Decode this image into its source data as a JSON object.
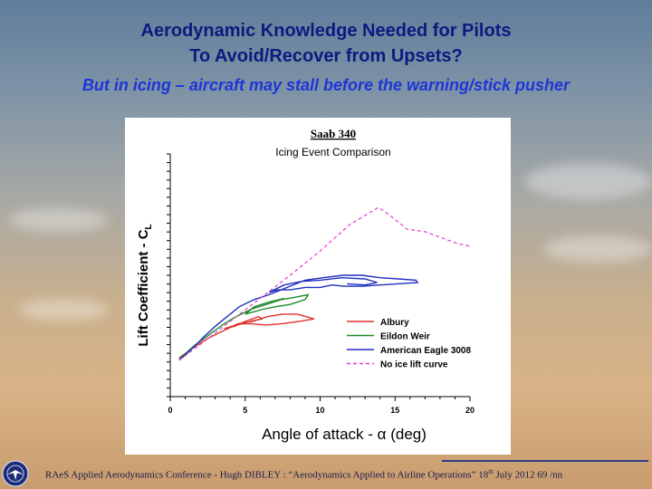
{
  "slide": {
    "title_line1": "Aerodynamic Knowledge Needed for Pilots",
    "title_line2": "To Avoid/Recover from Upsets?",
    "subtitle": "But in icing – aircraft may stall before the warning/stick pusher"
  },
  "footer": {
    "text_before": "RAeS Applied Aerodynamics Conference  -  Hugh DIBLEY :  “Aerodynamics Applied to Airline Operations”  18",
    "superscript": "th",
    "text_after": " July  2012  69 /nn",
    "logo_icon": "raes-logo-icon"
  },
  "chart_data": {
    "type": "line",
    "title": "Saab 340",
    "subtitle": "Icing Event Comparison",
    "xlabel": "Angle of attack - α (deg)",
    "ylabel": "Lift Coefficient - C",
    "ylabel_subscript": "L",
    "xlim": [
      0,
      20
    ],
    "x_ticks": [
      "0",
      "5",
      "10",
      "15",
      "20"
    ],
    "ylim": [
      0,
      1
    ],
    "legend_position": "center-right",
    "series": [
      {
        "name": "Albury",
        "color": "#e23030",
        "dash": "solid",
        "points": [
          [
            0.6,
            0.16
          ],
          [
            1.5,
            0.2
          ],
          [
            2.5,
            0.24
          ],
          [
            3.5,
            0.27
          ],
          [
            4.5,
            0.3
          ],
          [
            5.5,
            0.31
          ],
          [
            6.5,
            0.33
          ],
          [
            7.5,
            0.34
          ],
          [
            8.5,
            0.34
          ],
          [
            9.6,
            0.32
          ],
          [
            8.6,
            0.31
          ],
          [
            7.4,
            0.3
          ],
          [
            6.4,
            0.295
          ],
          [
            5.4,
            0.3
          ],
          [
            4.8,
            0.3
          ],
          [
            4.1,
            0.29
          ],
          [
            3.6,
            0.28
          ],
          [
            4.3,
            0.29
          ],
          [
            5.0,
            0.31
          ],
          [
            5.9,
            0.33
          ],
          [
            6.1,
            0.32
          ],
          [
            5.3,
            0.31
          ]
        ]
      },
      {
        "name": "Eildon Weir",
        "color": "#1f8a2a",
        "dash": "solid",
        "points": [
          [
            0.6,
            0.155
          ],
          [
            1.6,
            0.21
          ],
          [
            2.7,
            0.26
          ],
          [
            3.6,
            0.3
          ],
          [
            4.4,
            0.33
          ],
          [
            5.4,
            0.36
          ],
          [
            6.4,
            0.38
          ],
          [
            7.4,
            0.4
          ],
          [
            8.4,
            0.41
          ],
          [
            9.2,
            0.42
          ],
          [
            9.0,
            0.4
          ],
          [
            8.0,
            0.38
          ],
          [
            7.0,
            0.37
          ],
          [
            6.2,
            0.36
          ],
          [
            5.6,
            0.35
          ],
          [
            5.0,
            0.34
          ],
          [
            5.6,
            0.37
          ],
          [
            6.6,
            0.39
          ],
          [
            7.6,
            0.405
          ]
        ]
      },
      {
        "name": "American Eagle 3008",
        "color": "#1f2fc0",
        "dash": "solid",
        "points": [
          [
            0.6,
            0.15
          ],
          [
            1.5,
            0.2
          ],
          [
            2.3,
            0.25
          ],
          [
            3.0,
            0.29
          ],
          [
            3.8,
            0.33
          ],
          [
            4.6,
            0.37
          ],
          [
            5.6,
            0.4
          ],
          [
            6.6,
            0.42
          ],
          [
            7.8,
            0.45
          ],
          [
            9.0,
            0.48
          ],
          [
            10.2,
            0.49
          ],
          [
            11.5,
            0.5
          ],
          [
            12.8,
            0.5
          ],
          [
            14.0,
            0.49
          ],
          [
            15.2,
            0.485
          ],
          [
            16.4,
            0.48
          ],
          [
            16.5,
            0.47
          ],
          [
            15.2,
            0.465
          ],
          [
            14.0,
            0.46
          ],
          [
            12.8,
            0.455
          ],
          [
            11.6,
            0.455
          ],
          [
            10.8,
            0.46
          ],
          [
            10.0,
            0.45
          ],
          [
            9.0,
            0.45
          ],
          [
            8.0,
            0.44
          ],
          [
            7.2,
            0.44
          ],
          [
            6.6,
            0.43
          ],
          [
            7.6,
            0.46
          ],
          [
            8.8,
            0.475
          ],
          [
            10.0,
            0.48
          ],
          [
            11.4,
            0.49
          ],
          [
            13.0,
            0.485
          ],
          [
            13.8,
            0.47
          ],
          [
            13.0,
            0.46
          ],
          [
            11.8,
            0.465
          ]
        ]
      },
      {
        "name": "No ice lift curve",
        "color": "#e040c8",
        "dash": "dashed",
        "points": [
          [
            0.6,
            0.15
          ],
          [
            2.0,
            0.215
          ],
          [
            4.0,
            0.31
          ],
          [
            6.0,
            0.405
          ],
          [
            8.0,
            0.5
          ],
          [
            10.0,
            0.6
          ],
          [
            12.0,
            0.71
          ],
          [
            13.9,
            0.78
          ],
          [
            14.8,
            0.74
          ],
          [
            15.8,
            0.69
          ],
          [
            17.0,
            0.68
          ],
          [
            18.3,
            0.65
          ],
          [
            19.2,
            0.63
          ],
          [
            20.0,
            0.62
          ]
        ]
      }
    ]
  }
}
